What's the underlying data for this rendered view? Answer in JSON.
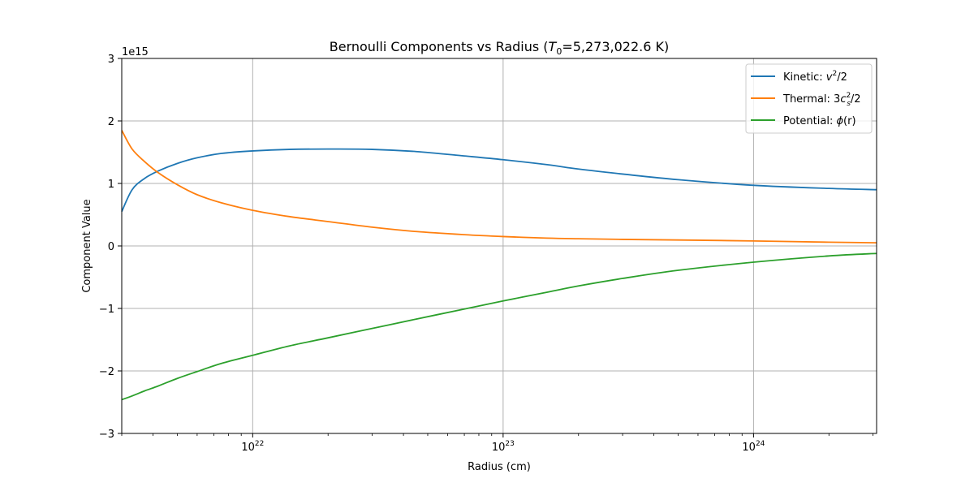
{
  "chart_data": {
    "type": "line",
    "title": "Bernoulli Components vs Radius (T₀=5,273,022.6 K)",
    "title_parts": {
      "pre": "Bernoulli Components vs Radius (",
      "sym": "T",
      "sub": "0",
      "post": "=5,273,022.6 K)"
    },
    "xlabel": "Radius (cm)",
    "ylabel": "Component Value",
    "x_scale": "log",
    "xlim": [
      3e+21,
      3.1e+24
    ],
    "ylim": [
      -3000000000000000.0,
      3000000000000000.0
    ],
    "y_offset_label": "1e15",
    "x_ticks": [
      {
        "value": 1e+22,
        "base": "10",
        "exp": "22"
      },
      {
        "value": 1e+23,
        "base": "10",
        "exp": "23"
      },
      {
        "value": 1e+24,
        "base": "10",
        "exp": "24"
      }
    ],
    "y_ticks": [
      {
        "value": 3000000000000000.0,
        "label": "3"
      },
      {
        "value": 2000000000000000.0,
        "label": "2"
      },
      {
        "value": 1000000000000000.0,
        "label": "1"
      },
      {
        "value": 0,
        "label": "0"
      },
      {
        "value": -1000000000000000.0,
        "label": "−1"
      },
      {
        "value": -2000000000000000.0,
        "label": "−2"
      },
      {
        "value": -3000000000000000.0,
        "label": "−3"
      }
    ],
    "grid": true,
    "legend_position": "top-right",
    "x": [
      3e+21,
      3.3e+21,
      3.7e+21,
      4.2e+21,
      5e+21,
      6e+21,
      7.5e+21,
      1e+22,
      1.4e+22,
      2e+22,
      3e+22,
      4.5e+22,
      7e+22,
      1e+23,
      1.5e+23,
      2e+23,
      3e+23,
      5e+23,
      1e+24,
      2e+24,
      3.1e+24
    ],
    "series": [
      {
        "name": "Kinetic: v²/2",
        "legend_parts": {
          "pre": "Kinetic: ",
          "sym": "v",
          "sup": "2",
          "post": "/2"
        },
        "color": "#1f77b4",
        "values": [
          550000000000000.0,
          900000000000000.0,
          1080000000000000.0,
          1200000000000000.0,
          1320000000000000.0,
          1410000000000000.0,
          1480000000000000.0,
          1520000000000000.0,
          1545000000000000.0,
          1550000000000000.0,
          1545000000000000.0,
          1510000000000000.0,
          1440000000000000.0,
          1380000000000000.0,
          1300000000000000.0,
          1230000000000000.0,
          1150000000000000.0,
          1060000000000000.0,
          970000000000000.0,
          920000000000000.0,
          900000000000000.0
        ]
      },
      {
        "name": "Thermal: 3cₛ²/2",
        "legend_parts": {
          "pre": "Thermal: 3",
          "sym": "c",
          "sub": "s",
          "sup": "2",
          "post": "/2"
        },
        "color": "#ff7f0e",
        "values": [
          1850000000000000.0,
          1550000000000000.0,
          1350000000000000.0,
          1170000000000000.0,
          980000000000000.0,
          820000000000000.0,
          690000000000000.0,
          570000000000000.0,
          470000000000000.0,
          390000000000000.0,
          300000000000000.0,
          230000000000000.0,
          180000000000000.0,
          150000000000000.0,
          125000000000000.0,
          115000000000000.0,
          105000000000000.0,
          95000000000000.0,
          80000000000000.0,
          60000000000000.0,
          50000000000000.0
        ]
      },
      {
        "name": "Potential: ϕ(r)",
        "legend_parts": {
          "pre": "Potential: ",
          "sym": "ϕ",
          "post": "(r)"
        },
        "color": "#2ca02c",
        "values": [
          -2460000000000000.0,
          -2400000000000000.0,
          -2320000000000000.0,
          -2240000000000000.0,
          -2120000000000000.0,
          -2010000000000000.0,
          -1880000000000000.0,
          -1750000000000000.0,
          -1600000000000000.0,
          -1470000000000000.0,
          -1320000000000000.0,
          -1170000000000000.0,
          -1010000000000000.0,
          -880000000000000.0,
          -740000000000000.0,
          -640000000000000.0,
          -520000000000000.0,
          -390000000000000.0,
          -260000000000000.0,
          -160000000000000.0,
          -120000000000000.0
        ]
      }
    ]
  }
}
